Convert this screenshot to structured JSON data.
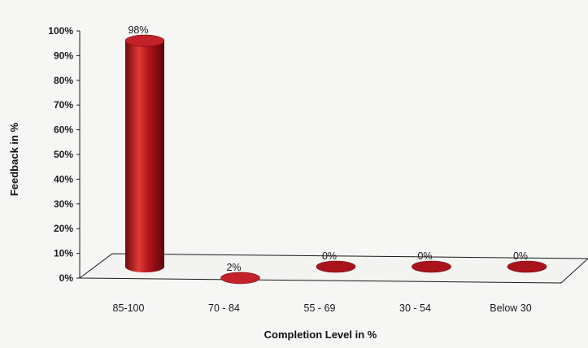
{
  "chart_data": {
    "type": "bar",
    "style": "3d-cylinder",
    "categories": [
      "85-100",
      "70 - 84",
      "55 - 69",
      "30 - 54",
      "Below 30"
    ],
    "values": [
      98,
      2,
      0,
      0,
      0
    ],
    "data_labels": [
      "98%",
      "2%",
      "0%",
      "0%",
      "0%"
    ],
    "xlabel": "Completion Level in %",
    "ylabel": "Feedback in %",
    "ylim": [
      0,
      100
    ],
    "yticks": [
      "0%",
      "10%",
      "20%",
      "30%",
      "40%",
      "50%",
      "60%",
      "70%",
      "80%",
      "90%",
      "100%"
    ],
    "grid": false,
    "legend": "none",
    "bar_color": "#b3141b"
  }
}
